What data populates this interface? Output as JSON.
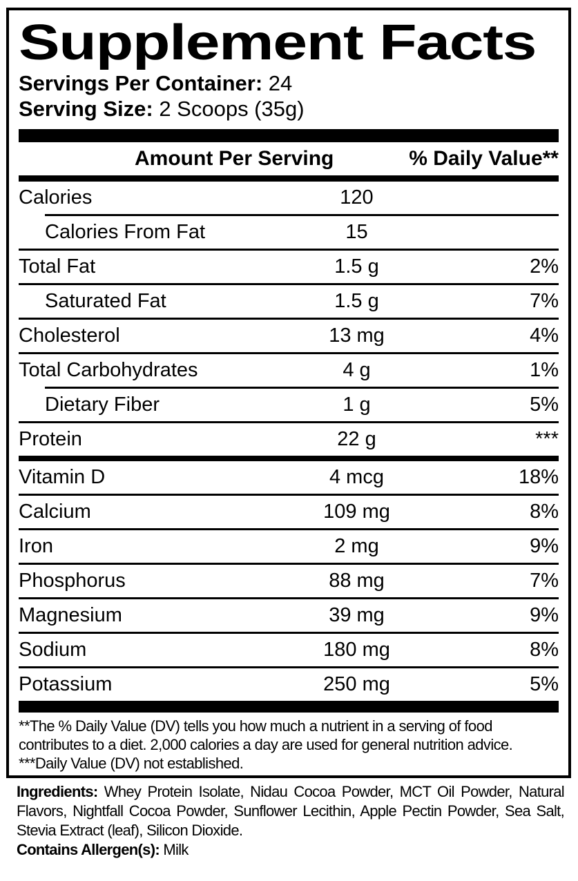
{
  "colors": {
    "text": "#000000",
    "background": "#ffffff"
  },
  "header": {
    "title": "Supplement Facts",
    "servings_per_container_label": "Servings Per Container:",
    "servings_per_container_value": "24",
    "serving_size_label": "Serving Size:",
    "serving_size_value": "2 Scoops (35g)"
  },
  "table": {
    "amount_header": "Amount Per Serving",
    "dv_header": "% Daily Value**",
    "rows": [
      {
        "name": "Calories",
        "amount": "120",
        "dv": "",
        "indent": false,
        "sep_above": "none"
      },
      {
        "name": "Calories From Fat",
        "amount": "15",
        "dv": "",
        "indent": true,
        "sep_above": "indented"
      },
      {
        "name": "Total Fat",
        "amount": "1.5 g",
        "dv": "2%",
        "indent": false,
        "sep_above": "full"
      },
      {
        "name": "Saturated Fat",
        "amount": "1.5 g",
        "dv": "7%",
        "indent": true,
        "sep_above": "full"
      },
      {
        "name": "Cholesterol",
        "amount": "13 mg",
        "dv": "4%",
        "indent": false,
        "sep_above": "full"
      },
      {
        "name": "Total Carbohydrates",
        "amount": "4 g",
        "dv": "1%",
        "indent": false,
        "sep_above": "full"
      },
      {
        "name": "Dietary Fiber",
        "amount": "1 g",
        "dv": "5%",
        "indent": true,
        "sep_above": "indented"
      },
      {
        "name": "Protein",
        "amount": "22 g",
        "dv": "***",
        "indent": false,
        "sep_above": "full"
      },
      {
        "name": "Vitamin D",
        "amount": "4 mcg",
        "dv": "18%",
        "indent": false,
        "sep_above": "medium"
      },
      {
        "name": "Calcium",
        "amount": "109 mg",
        "dv": "8%",
        "indent": false,
        "sep_above": "full"
      },
      {
        "name": "Iron",
        "amount": "2 mg",
        "dv": "9%",
        "indent": false,
        "sep_above": "full"
      },
      {
        "name": "Phosphorus",
        "amount": "88 mg",
        "dv": "7%",
        "indent": false,
        "sep_above": "full"
      },
      {
        "name": "Magnesium",
        "amount": "39 mg",
        "dv": "9%",
        "indent": false,
        "sep_above": "full"
      },
      {
        "name": "Sodium",
        "amount": "180 mg",
        "dv": "8%",
        "indent": false,
        "sep_above": "full"
      },
      {
        "name": "Potassium",
        "amount": "250 mg",
        "dv": "5%",
        "indent": false,
        "sep_above": "full"
      }
    ]
  },
  "footnotes": {
    "dv_note": "**The % Daily Value (DV) tells you how much a nutrient in a serving of food contributes to a diet. 2,000 calories a day are used for general nutrition advice.",
    "not_established_note": "***Daily Value (DV) not established."
  },
  "ingredients": {
    "label": "Ingredients:",
    "text": "Whey Protein Isolate, Nidau Cocoa Powder, MCT Oil Powder, Natural Flavors, Nightfall Cocoa Powder, Sunflower Lecithin, Apple Pectin Powder, Sea Salt, Stevia Extract (leaf), Silicon Dioxide.",
    "allergen_label": "Contains Allergen(s):",
    "allergen_value": "Milk"
  }
}
